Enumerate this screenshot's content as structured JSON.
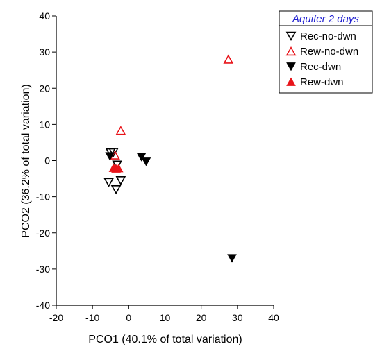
{
  "chart_data": {
    "type": "scatter",
    "title": "",
    "xlabel": "PCO1 (40.1% of total variation)",
    "ylabel": "PCO2 (36.2% of total variation)",
    "xlim": [
      -20,
      40
    ],
    "ylim": [
      -40,
      40
    ],
    "xticks": [
      -20,
      -10,
      0,
      10,
      20,
      30,
      40
    ],
    "yticks": [
      40,
      30,
      20,
      10,
      0,
      -10,
      -20,
      -30,
      -40
    ],
    "grid": false,
    "legend": {
      "title": "Aquifer 2 days",
      "placement": "top-right"
    },
    "series": [
      {
        "name": "Rec-no-dwn",
        "marker": "triangle-down-open",
        "color": "#000000",
        "points": [
          {
            "x": -5,
            "y": 2.2
          },
          {
            "x": -4.2,
            "y": 2.3
          },
          {
            "x": -3.2,
            "y": -1.2
          },
          {
            "x": -5.5,
            "y": -6
          },
          {
            "x": -2.2,
            "y": -5.5
          },
          {
            "x": -3.5,
            "y": -8
          }
        ]
      },
      {
        "name": "Rew-no-dwn",
        "marker": "triangle-up-open",
        "color": "#e8141a",
        "points": [
          {
            "x": 27.5,
            "y": 28
          },
          {
            "x": -2.2,
            "y": 8.3
          },
          {
            "x": -3.8,
            "y": 1.5
          }
        ]
      },
      {
        "name": "Rec-dwn",
        "marker": "triangle-down-filled",
        "color": "#000000",
        "points": [
          {
            "x": -5.2,
            "y": 1.2
          },
          {
            "x": 3.5,
            "y": 1
          },
          {
            "x": 4.8,
            "y": -0.3
          },
          {
            "x": 28.5,
            "y": -27
          }
        ]
      },
      {
        "name": "Rew-dwn",
        "marker": "triangle-up-filled",
        "color": "#e8141a",
        "points": [
          {
            "x": -4.2,
            "y": -2
          },
          {
            "x": -3.5,
            "y": -2.2
          },
          {
            "x": -2.8,
            "y": -2.1
          }
        ]
      }
    ]
  }
}
